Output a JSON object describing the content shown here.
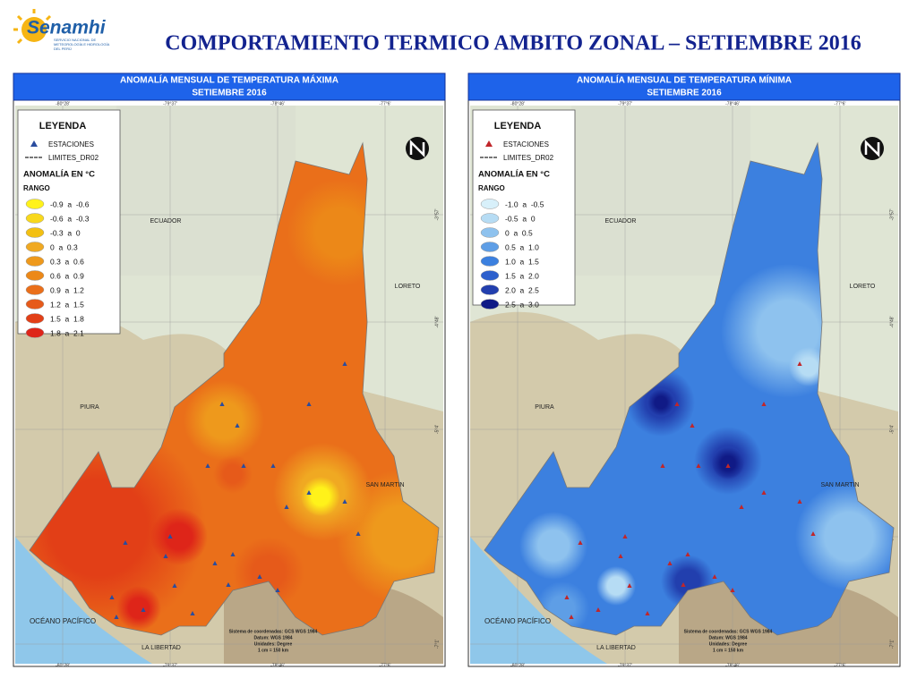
{
  "header": {
    "logo": "Senamhi",
    "logo_subtitle": "SERVICIO NACIONAL DE METEOROLOGÍA E HIDROLOGÍA DEL PERÚ",
    "title": "COMPORTAMIENTO TERMICO AMBITO ZONAL – SETIEMBRE 2016"
  },
  "panels": [
    {
      "title_lines": [
        "ANOMALÍA  MENSUAL  DE TEMPERATURA MÁXIMA",
        "SETIEMBRE 2016"
      ],
      "legend": {
        "title": "LEYENDA",
        "stations": "ESTACIONES",
        "limits": "LIMITES_DR02",
        "station_color": "#2a4c9e",
        "subtitle": "ANOMALÍA EN °C",
        "range_title": "RANGO",
        "ranges": [
          {
            "label": "-0.9  a  -0.6",
            "color": "#fff21a"
          },
          {
            "label": "-0.6  a  -0.3",
            "color": "#f8d81c"
          },
          {
            "label": "-0.3  a  0",
            "color": "#f3c012"
          },
          {
            "label": "0  a  0.3",
            "color": "#f0a922"
          },
          {
            "label": "0.3  a  0.6",
            "color": "#ee991c"
          },
          {
            "label": "0.6  a  0.9",
            "color": "#ec8818"
          },
          {
            "label": "0.9  a  1.2",
            "color": "#ea6f1a"
          },
          {
            "label": "1.2  a  1.5",
            "color": "#e65a1a"
          },
          {
            "label": "1.5  a  1.8",
            "color": "#e23f17"
          },
          {
            "label": "1.8  a  2.1",
            "color": "#de2519"
          }
        ]
      },
      "places": [
        "ECUADOR",
        "LORETO",
        "PIURA",
        "SAN MARTIN",
        "OCÉANO PACÍFICO",
        "LA LIBERTAD"
      ],
      "coords_top": [
        "-80°28'",
        "-79°37'",
        "-78°46'",
        "-77°6'"
      ],
      "coords_side": [
        "-3°57'",
        "-4°48'",
        "-5°4'",
        "-6°23'",
        "-7°1'"
      ],
      "notes": [
        "Sistema de coordenadas: GCS WGS 1984",
        "Datum: WGS 1984",
        "Unidades: Degree",
        "1 cm = 150 km"
      ]
    },
    {
      "title_lines": [
        "ANOMALÍA  MENSUAL  DE TEMPERATURA MÍNIMA",
        "SETIEMBRE 2016"
      ],
      "legend": {
        "title": "LEYENDA",
        "stations": "ESTACIONES",
        "limits": "LIMITES_DR02",
        "station_color": "#c0262a",
        "subtitle": "ANOMALÍA EN °C",
        "range_title": "RANGO",
        "ranges": [
          {
            "label": "-1.0  a  -0.5",
            "color": "#d8f0fa"
          },
          {
            "label": "-0.5  a  0",
            "color": "#b6dcf4"
          },
          {
            "label": "0  a  0.5",
            "color": "#8ec2ee"
          },
          {
            "label": "0.5  a  1.0",
            "color": "#5e9ee6"
          },
          {
            "label": "1.0  a  1.5",
            "color": "#3c80df"
          },
          {
            "label": "1.5  a  2.0",
            "color": "#2d60cd"
          },
          {
            "label": "2.0  a  2.5",
            "color": "#223fae"
          },
          {
            "label": "2.5  a  3.0",
            "color": "#101a86"
          }
        ]
      },
      "places": [
        "ECUADOR",
        "LORETO",
        "PIURA",
        "SAN MARTIN",
        "OCÉANO PACÍFICO",
        "LA LIBERTAD"
      ],
      "coords_top": [
        "-80°28'",
        "-79°37'",
        "-78°46'",
        "-77°6'"
      ],
      "coords_side": [
        "-3°57'",
        "-4°48'",
        "-5°4'",
        "-6°23'",
        "-7°1'"
      ],
      "notes": [
        "Sistema de coordenadas: GCS WGS 1984",
        "Datum: WGS 1984",
        "Unidades: Degree",
        "1 cm = 150 km"
      ]
    }
  ]
}
